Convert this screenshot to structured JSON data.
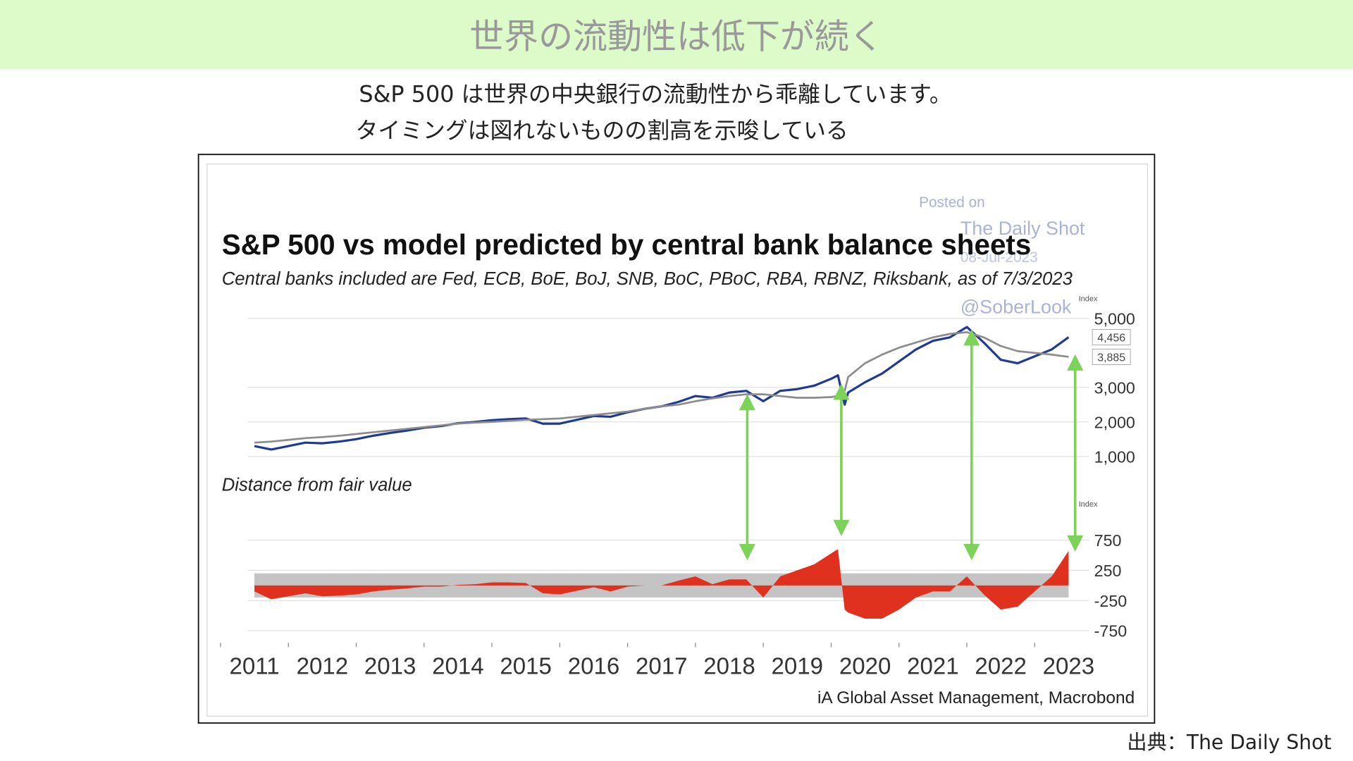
{
  "header": {
    "title": "世界の流動性は低下が続く"
  },
  "subtitle_lines": [
    "S&P 500 は世界の中央銀行の流動性から乖離しています。",
    "タイミングは図れないものの割高を示唆している"
  ],
  "source": "出典：The Daily Shot",
  "watermark": [
    "Posted on",
    "The Daily Shot",
    "08-Jul-2023",
    "@SoberLook"
  ],
  "chart_data": [
    {
      "type": "line",
      "title": "S&P 500 vs model predicted by central bank balance sheets",
      "subtitle": "Central banks included are Fed, ECB, BoE, BoJ, SNB, BoC, PBoC, RBA, RBNZ, Riksbank, as of 7/3/2023",
      "axis_label": "Index",
      "x": [
        2011.5,
        2011.75,
        2012,
        2012.25,
        2012.5,
        2012.75,
        2013,
        2013.25,
        2013.5,
        2013.75,
        2014,
        2014.25,
        2014.5,
        2014.75,
        2015,
        2015.25,
        2015.5,
        2015.75,
        2016,
        2016.25,
        2016.5,
        2016.75,
        2017,
        2017.25,
        2017.5,
        2017.75,
        2018,
        2018.25,
        2018.5,
        2018.75,
        2019,
        2019.25,
        2019.5,
        2019.75,
        2020,
        2020.1,
        2020.2,
        2020.25,
        2020.5,
        2020.75,
        2021,
        2021.25,
        2021.5,
        2021.75,
        2022,
        2022.25,
        2022.5,
        2022.75,
        2023,
        2023.25,
        2023.5
      ],
      "series": [
        {
          "color": "#1f3a93",
          "end_label": "4,456",
          "values": [
            1300,
            1200,
            1300,
            1400,
            1380,
            1430,
            1500,
            1600,
            1680,
            1750,
            1830,
            1880,
            1960,
            2000,
            2050,
            2080,
            2100,
            1950,
            1950,
            2060,
            2170,
            2150,
            2280,
            2380,
            2450,
            2580,
            2750,
            2700,
            2850,
            2900,
            2600,
            2900,
            2950,
            3050,
            3250,
            3350,
            2500,
            2850,
            3150,
            3400,
            3750,
            4100,
            4350,
            4450,
            4750,
            4300,
            3800,
            3700,
            3900,
            4100,
            4456
          ]
        },
        {
          "color": "#8c8c8c",
          "end_label": "3,885",
          "values": [
            1400,
            1430,
            1480,
            1530,
            1560,
            1600,
            1650,
            1700,
            1750,
            1800,
            1850,
            1900,
            1950,
            1980,
            2000,
            2030,
            2060,
            2080,
            2100,
            2150,
            2200,
            2250,
            2300,
            2380,
            2450,
            2500,
            2600,
            2680,
            2750,
            2800,
            2800,
            2750,
            2700,
            2700,
            2720,
            2750,
            2900,
            3300,
            3700,
            3950,
            4150,
            4300,
            4450,
            4550,
            4600,
            4450,
            4200,
            4050,
            4000,
            3950,
            3885
          ]
        }
      ],
      "xlim": [
        2011.4,
        2023.8
      ],
      "ylim": [
        600,
        5400
      ],
      "yticks": [
        {
          "value": 1000,
          "label": "1,000"
        },
        {
          "value": 2000,
          "label": "2,000"
        },
        {
          "value": 3000,
          "label": "3,000"
        },
        {
          "value": 5000,
          "label": "5,000"
        }
      ],
      "grid": true
    },
    {
      "type": "area",
      "title": "Distance from fair value",
      "axis_label": "Index",
      "source": "iA Global Asset Management, Macrobond",
      "color": "#e0301e",
      "band": [
        -200,
        200
      ],
      "band_color": "#c4c4c4",
      "x": [
        2011.5,
        2011.75,
        2012,
        2012.25,
        2012.5,
        2012.75,
        2013,
        2013.25,
        2013.5,
        2013.75,
        2014,
        2014.25,
        2014.5,
        2014.75,
        2015,
        2015.25,
        2015.5,
        2015.75,
        2016,
        2016.25,
        2016.5,
        2016.75,
        2017,
        2017.25,
        2017.5,
        2017.75,
        2018,
        2018.25,
        2018.5,
        2018.75,
        2019,
        2019.25,
        2019.5,
        2019.75,
        2020,
        2020.1,
        2020.2,
        2020.25,
        2020.5,
        2020.75,
        2021,
        2021.25,
        2021.5,
        2021.75,
        2022,
        2022.25,
        2022.5,
        2022.75,
        2023,
        2023.25,
        2023.5
      ],
      "values": [
        -100,
        -230,
        -180,
        -130,
        -180,
        -170,
        -150,
        -100,
        -70,
        -50,
        -20,
        -20,
        10,
        20,
        50,
        50,
        40,
        -130,
        -150,
        -90,
        -30,
        -100,
        -20,
        0,
        0,
        80,
        150,
        20,
        100,
        100,
        -200,
        150,
        250,
        350,
        530,
        600,
        -400,
        -450,
        -550,
        -550,
        -400,
        -200,
        -100,
        -100,
        150,
        -150,
        -400,
        -350,
        -100,
        150,
        571
      ],
      "xlim": [
        2011.4,
        2023.8
      ],
      "xticks": [
        2011,
        2012,
        2013,
        2014,
        2015,
        2016,
        2017,
        2018,
        2019,
        2020,
        2021,
        2022,
        2023
      ],
      "ylim": [
        -950,
        1050
      ],
      "yticks": [
        750,
        250,
        -250,
        -750
      ],
      "grid": true
    }
  ]
}
